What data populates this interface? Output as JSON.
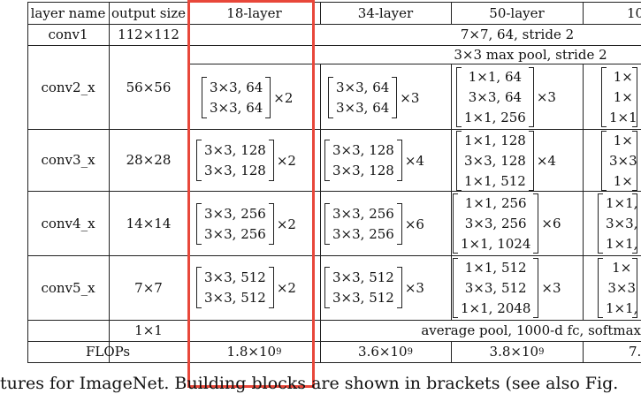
{
  "table": {
    "headers": [
      "layer name",
      "output size",
      "18-layer",
      "34-layer",
      "50-layer",
      "10"
    ],
    "rows": [
      {
        "name": "conv1",
        "size": "112×112",
        "span_text": "7×7, 64, stride 2"
      },
      {
        "name": "",
        "size": "",
        "span_text": "3×3 max pool, stride 2"
      },
      {
        "name": "conv2_x",
        "size": "56×56"
      },
      {
        "name": "conv3_x",
        "size": "28×28"
      },
      {
        "name": "conv4_x",
        "size": "14×14"
      },
      {
        "name": "conv5_x",
        "size": "7×7"
      },
      {
        "name": "",
        "size": "1×1",
        "span_text": "average pool, 1000-d fc, softmax"
      }
    ],
    "blocks": {
      "conv2": {
        "l18": {
          "lines": [
            "3×3, 64",
            "3×3, 64"
          ],
          "mult": "×2"
        },
        "l34": {
          "lines": [
            "3×3, 64",
            "3×3, 64"
          ],
          "mult": "×3"
        },
        "l50": {
          "lines": [
            "1×1, 64",
            "3×3, 64",
            "1×1, 256"
          ],
          "mult": "×3"
        },
        "l101": {
          "lines": [
            "1×",
            "1×",
            "1×1"
          ]
        }
      },
      "conv3": {
        "l18": {
          "lines": [
            "3×3, 128",
            "3×3, 128"
          ],
          "mult": "×2"
        },
        "l34": {
          "lines": [
            "3×3, 128",
            "3×3, 128"
          ],
          "mult": "×4"
        },
        "l50": {
          "lines": [
            "1×1, 128",
            "3×3, 128",
            "1×1, 512"
          ],
          "mult": "×4"
        },
        "l101": {
          "lines": [
            "1×",
            "3×3",
            "1×"
          ]
        }
      },
      "conv4": {
        "l18": {
          "lines": [
            "3×3, 256",
            "3×3, 256"
          ],
          "mult": "×2"
        },
        "l34": {
          "lines": [
            "3×3, 256",
            "3×3, 256"
          ],
          "mult": "×6"
        },
        "l50": {
          "lines": [
            "1×1, 256",
            "3×3, 256",
            "1×1, 1024"
          ],
          "mult": "×6"
        },
        "l101": {
          "lines": [
            "1×1,",
            "3×3,",
            "1×1,"
          ]
        }
      },
      "conv5": {
        "l18": {
          "lines": [
            "3×3, 512",
            "3×3, 512"
          ],
          "mult": "×2"
        },
        "l34": {
          "lines": [
            "3×3, 512",
            "3×3, 512"
          ],
          "mult": "×3"
        },
        "l50": {
          "lines": [
            "1×1, 512",
            "3×3, 512",
            "1×1, 2048"
          ],
          "mult": "×3"
        },
        "l101": {
          "lines": [
            "1×",
            "3×3",
            "1×1,"
          ]
        }
      }
    },
    "flops": {
      "label": "FLOPs",
      "l18": {
        "base": "1.8×10",
        "exp": "9"
      },
      "l34": {
        "base": "3.6×10",
        "exp": "9"
      },
      "l50": {
        "base": "3.8×10",
        "exp": "9"
      },
      "l101": {
        "base": "7."
      }
    }
  },
  "highlight_color": "#e8473a",
  "caption": "tures for ImageNet. Building blocks are shown in brackets (see also Fig."
}
